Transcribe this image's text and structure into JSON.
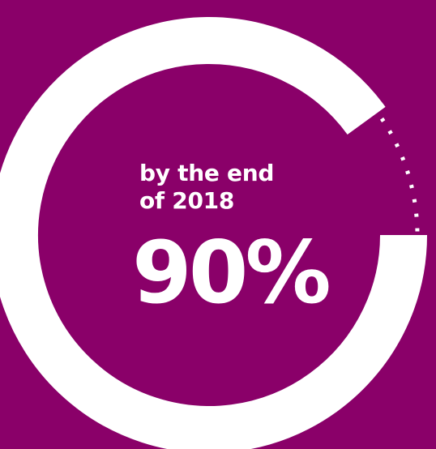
{
  "chart_data": {
    "type": "pie",
    "values": [
      90
    ],
    "value_label": "90%",
    "caption_lines": [
      "by the end",
      "of 2018"
    ],
    "remaining_style": "dotted"
  },
  "colors": {
    "background": "#8a0069",
    "ring": "#ffffff",
    "text": "#ffffff"
  }
}
